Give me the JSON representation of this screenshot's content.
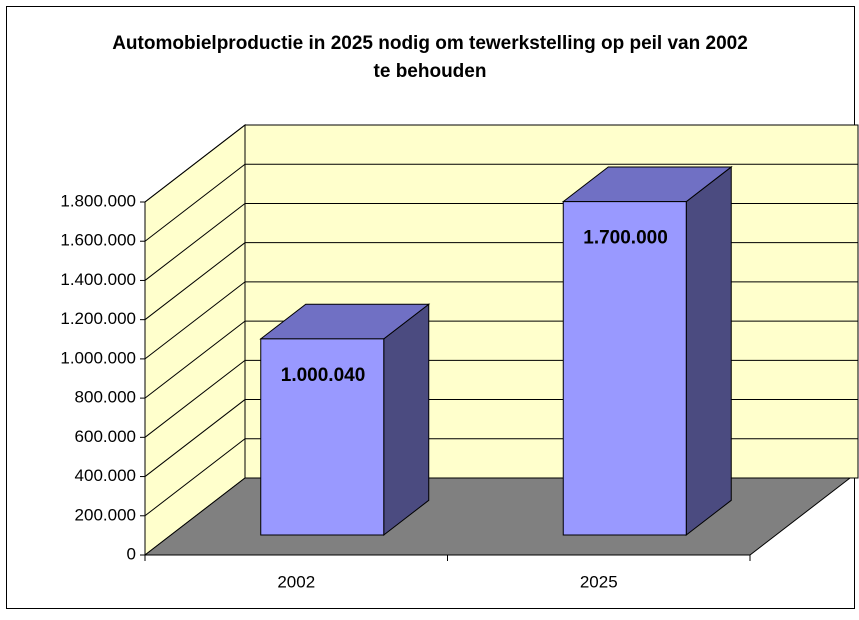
{
  "chart_data": {
    "type": "bar3d",
    "title": "Automobielproductie in 2025 nodig om tewerkstelling op peil van 2002 te behouden",
    "categories": [
      "2002",
      "2025"
    ],
    "values": [
      1000040,
      1700000
    ],
    "value_labels": [
      "1.000.040",
      "1.700.000"
    ],
    "color": "#9999ff",
    "ylim": [
      0,
      1800000
    ],
    "yticks": [
      0,
      {
        "value": 200000,
        "label": "200.000"
      },
      {
        "value": 400000,
        "label": "400.000"
      },
      {
        "value": 600000,
        "label": "600.000"
      },
      {
        "value": 800000,
        "label": "800.000"
      },
      {
        "value": 1000000,
        "label": "1.000.000"
      },
      {
        "value": 1200000,
        "label": "1.200.000"
      },
      {
        "value": 1400000,
        "label": "1.400.000"
      },
      {
        "value": 1600000,
        "label": "1.600.000"
      },
      {
        "value": 1800000,
        "label": "1.800.000"
      }
    ],
    "grid": true
  }
}
